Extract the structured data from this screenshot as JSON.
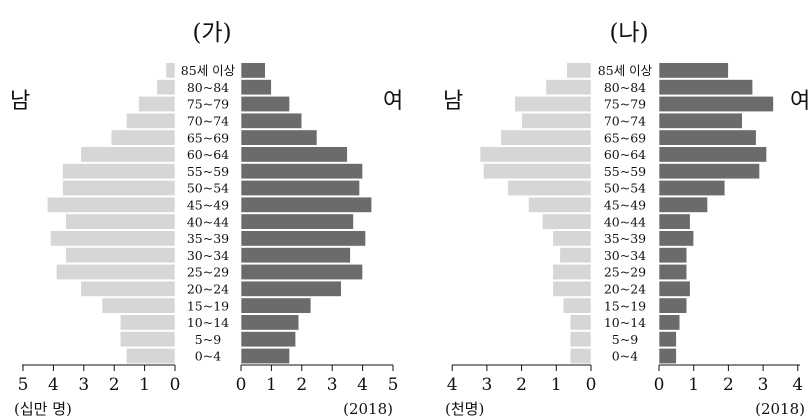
{
  "chart_data": [
    {
      "type": "bar",
      "title": "(가)",
      "year_label": "(2018)",
      "unit_label": "(십만 명)",
      "male_label": "남",
      "female_label": "여",
      "age_groups": [
        "85세 이상",
        "80~84",
        "75~79",
        "70~74",
        "65~69",
        "60~64",
        "55~59",
        "50~54",
        "45~49",
        "40~44",
        "35~39",
        "30~34",
        "25~29",
        "20~24",
        "15~19",
        "10~14",
        "5~9",
        "0~4"
      ],
      "series": [
        {
          "name": "남",
          "values": [
            0.3,
            0.6,
            1.2,
            1.6,
            2.1,
            3.1,
            3.7,
            3.7,
            4.2,
            3.6,
            4.1,
            3.6,
            3.9,
            3.1,
            2.4,
            1.8,
            1.8,
            1.6
          ]
        },
        {
          "name": "여",
          "values": [
            0.8,
            1.0,
            1.6,
            2.0,
            2.5,
            3.5,
            4.0,
            3.9,
            4.3,
            3.7,
            4.1,
            3.6,
            4.0,
            3.3,
            2.3,
            1.9,
            1.8,
            1.6
          ]
        }
      ],
      "male_ticks": [
        "5",
        "4",
        "3",
        "2",
        "1",
        "0"
      ],
      "female_ticks": [
        "0",
        "1",
        "2",
        "3",
        "4",
        "5"
      ],
      "xlim": [
        0,
        5
      ]
    },
    {
      "type": "bar",
      "title": "(나)",
      "year_label": "(2018)",
      "unit_label": "(천명)",
      "male_label": "남",
      "female_label": "여",
      "age_groups": [
        "85세 이상",
        "80~84",
        "75~79",
        "70~74",
        "65~69",
        "60~64",
        "55~59",
        "50~54",
        "45~49",
        "40~44",
        "35~39",
        "30~34",
        "25~29",
        "20~24",
        "15~19",
        "10~14",
        "5~9",
        "0~4"
      ],
      "series": [
        {
          "name": "남",
          "values": [
            0.7,
            1.3,
            2.2,
            2.0,
            2.6,
            3.2,
            3.1,
            2.4,
            1.8,
            1.4,
            1.1,
            0.9,
            1.1,
            1.1,
            0.8,
            0.6,
            0.6,
            0.6
          ]
        },
        {
          "name": "여",
          "values": [
            2.0,
            2.7,
            3.3,
            2.4,
            2.8,
            3.1,
            2.9,
            1.9,
            1.4,
            0.9,
            1.0,
            0.8,
            0.8,
            0.9,
            0.8,
            0.6,
            0.5,
            0.5
          ]
        }
      ],
      "male_ticks": [
        "4",
        "3",
        "2",
        "1",
        "0"
      ],
      "female_ticks": [
        "0",
        "1",
        "2",
        "3",
        "4"
      ],
      "xlim": [
        0,
        4
      ]
    }
  ],
  "colors": {
    "male": "#d6d6d6",
    "female": "#6b6b6b",
    "axis": "#111111"
  }
}
